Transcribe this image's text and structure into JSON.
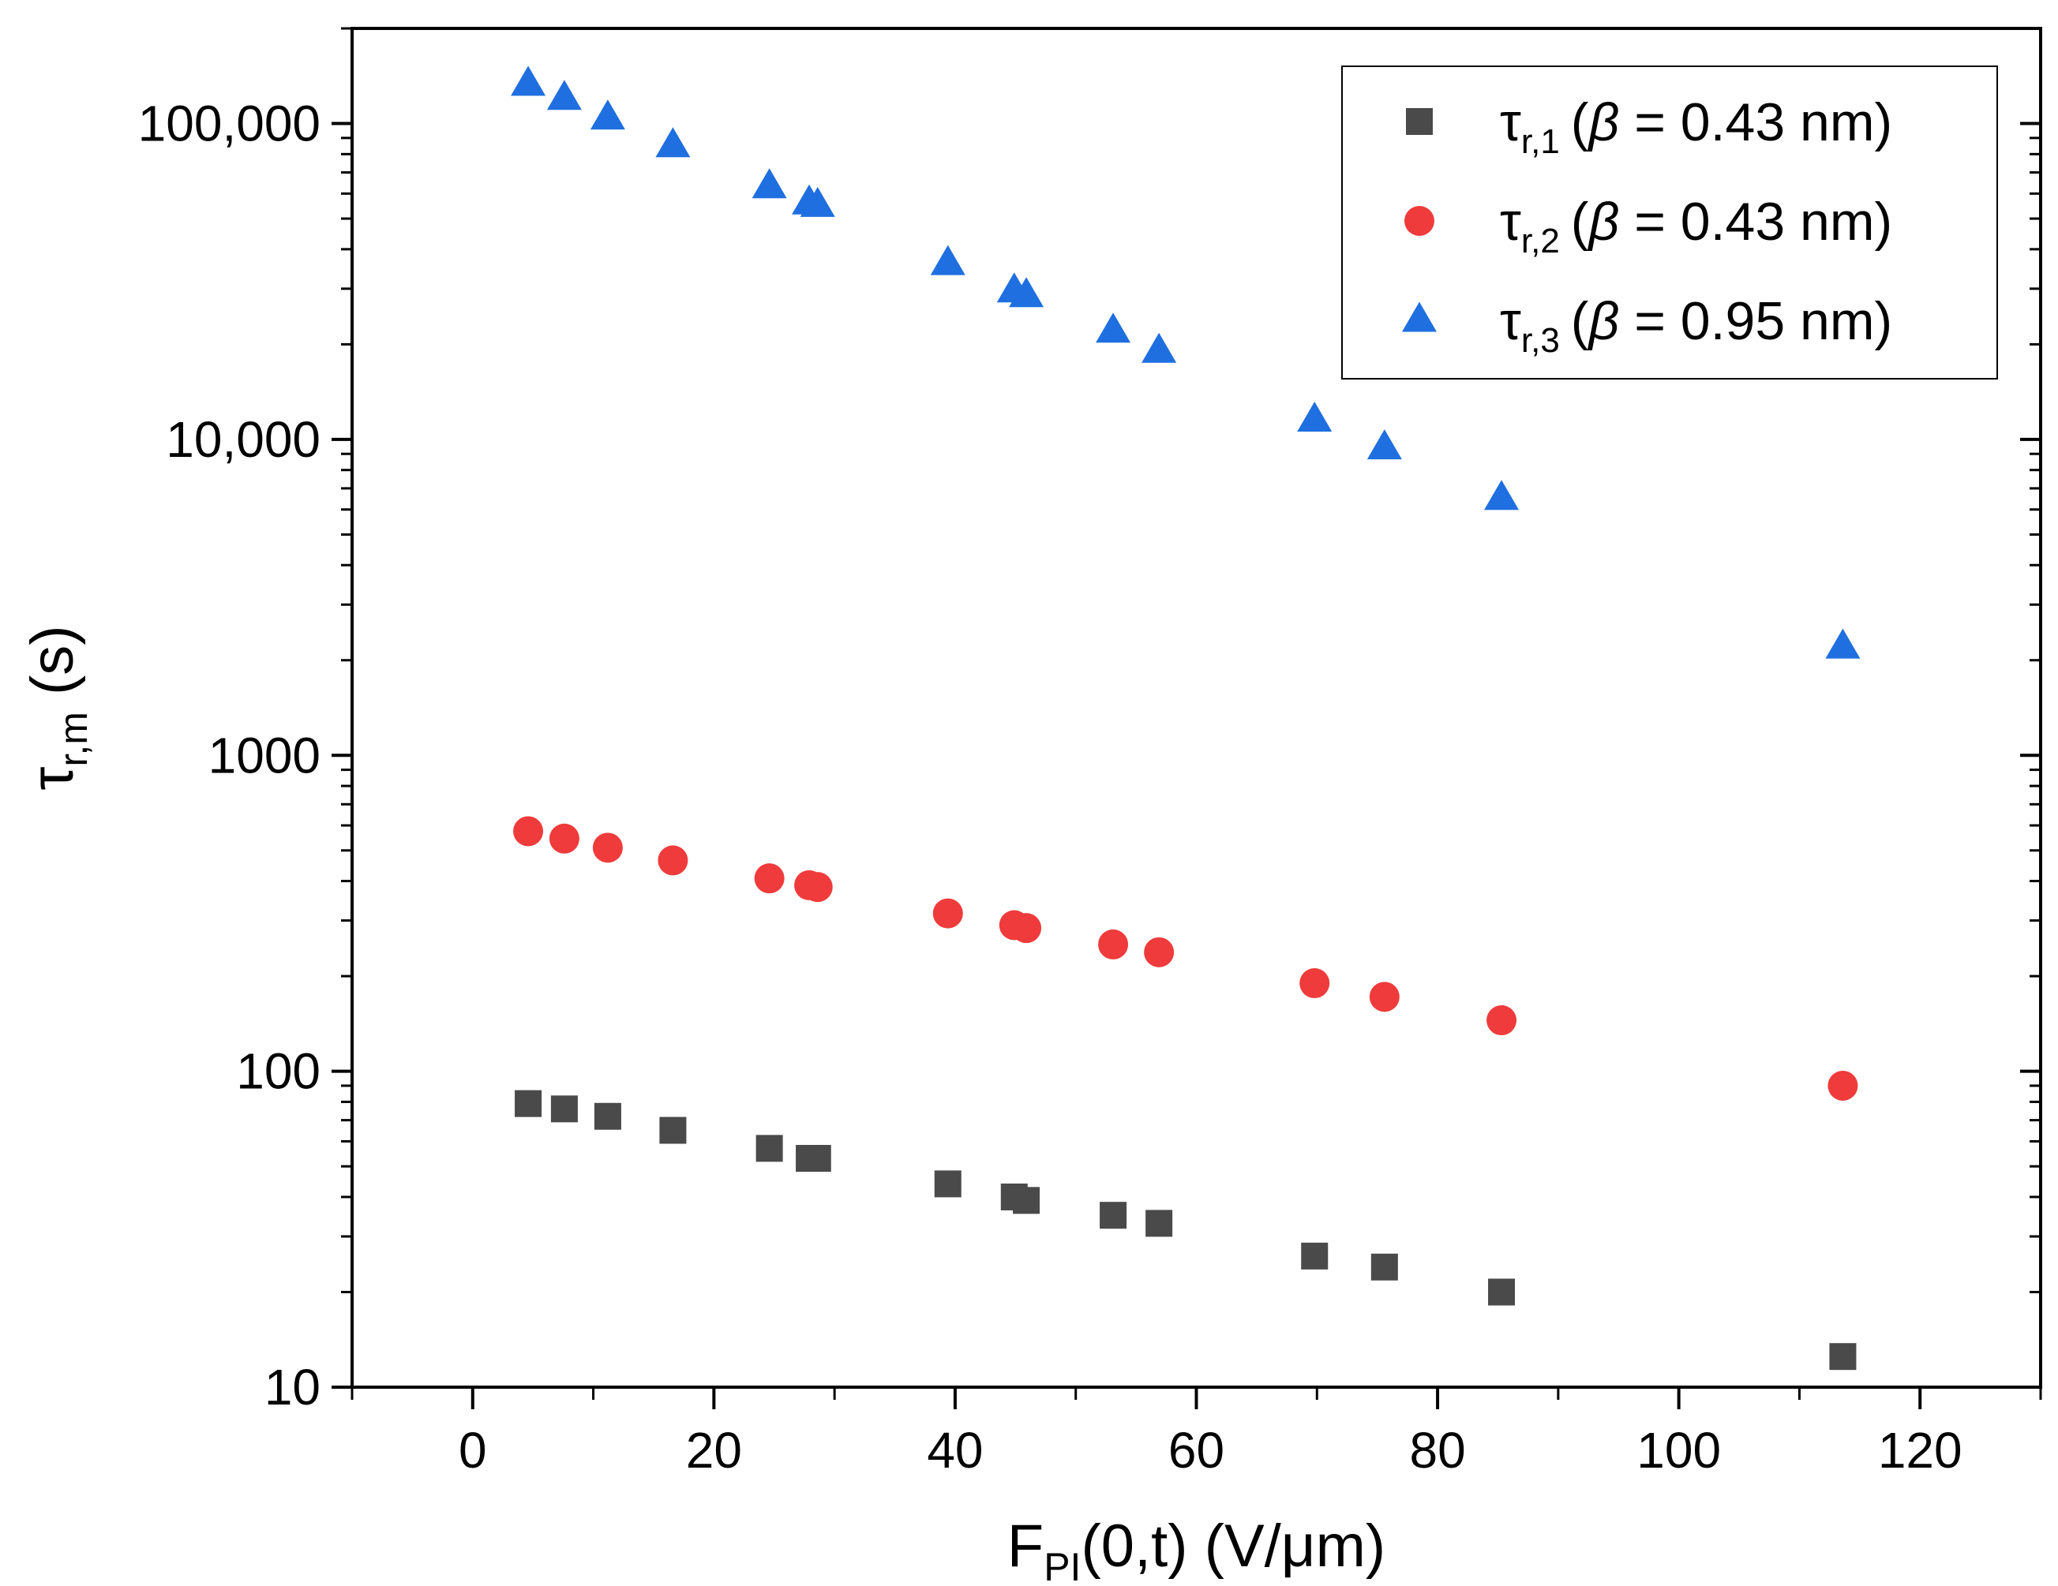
{
  "chart_data": {
    "type": "scatter",
    "title": "",
    "xlabel": {
      "main": "F",
      "sub": "PI",
      "rest": "(0,t) (V/μm)"
    },
    "ylabel": {
      "main": "τ",
      "sub": "r,m",
      "rest": " (s)"
    },
    "xlim": [
      -10,
      130
    ],
    "ylim": [
      10,
      200000
    ],
    "yscale": "log",
    "x_ticks": [
      {
        "value": 0,
        "label": "0"
      },
      {
        "value": 20,
        "label": "20"
      },
      {
        "value": 40,
        "label": "40"
      },
      {
        "value": 60,
        "label": "60"
      },
      {
        "value": 80,
        "label": "80"
      },
      {
        "value": 100,
        "label": "100"
      },
      {
        "value": 120,
        "label": "120"
      }
    ],
    "y_ticks": [
      {
        "value": 10,
        "label": "10"
      },
      {
        "value": 100,
        "label": "100"
      },
      {
        "value": 1000,
        "label": "1000"
      },
      {
        "value": 10000,
        "label": "10,000"
      },
      {
        "value": 100000,
        "label": "100,000"
      }
    ],
    "legend_position": "top-right",
    "x": [
      4.6,
      7.6,
      11.2,
      16.6,
      24.6,
      27.9,
      28.6,
      39.4,
      44.9,
      45.9,
      53.1,
      56.9,
      69.8,
      75.6,
      85.3,
      113.6
    ],
    "series": [
      {
        "name": "tau_r1",
        "legend": {
          "symbol": "τ",
          "sub": "r,1",
          "beta": "β",
          "text": " = 0.43 nm)"
        },
        "marker": "square",
        "color": "#4a4a4a",
        "values": [
          79,
          76,
          72,
          65,
          57,
          53,
          53,
          44,
          40,
          39,
          35,
          33,
          26,
          24,
          20,
          12.5
        ]
      },
      {
        "name": "tau_r2",
        "legend": {
          "symbol": "τ",
          "sub": "r,2",
          "beta": "β",
          "text": " = 0.43 nm)"
        },
        "marker": "circle",
        "color": "#ef3b3b",
        "values": [
          575,
          545,
          510,
          465,
          408,
          388,
          383,
          316,
          290,
          284,
          252,
          238,
          190,
          172,
          145,
          90
        ]
      },
      {
        "name": "tau_r3",
        "legend": {
          "symbol": "τ",
          "sub": "r,3",
          "beta": "β",
          "text": " = 0.95 nm)"
        },
        "marker": "triangle",
        "color": "#1f6fe0",
        "values": [
          133000,
          120000,
          104000,
          85000,
          63000,
          56000,
          55000,
          36000,
          29500,
          28500,
          22000,
          19000,
          11500,
          9400,
          6500,
          2200
        ]
      }
    ]
  }
}
